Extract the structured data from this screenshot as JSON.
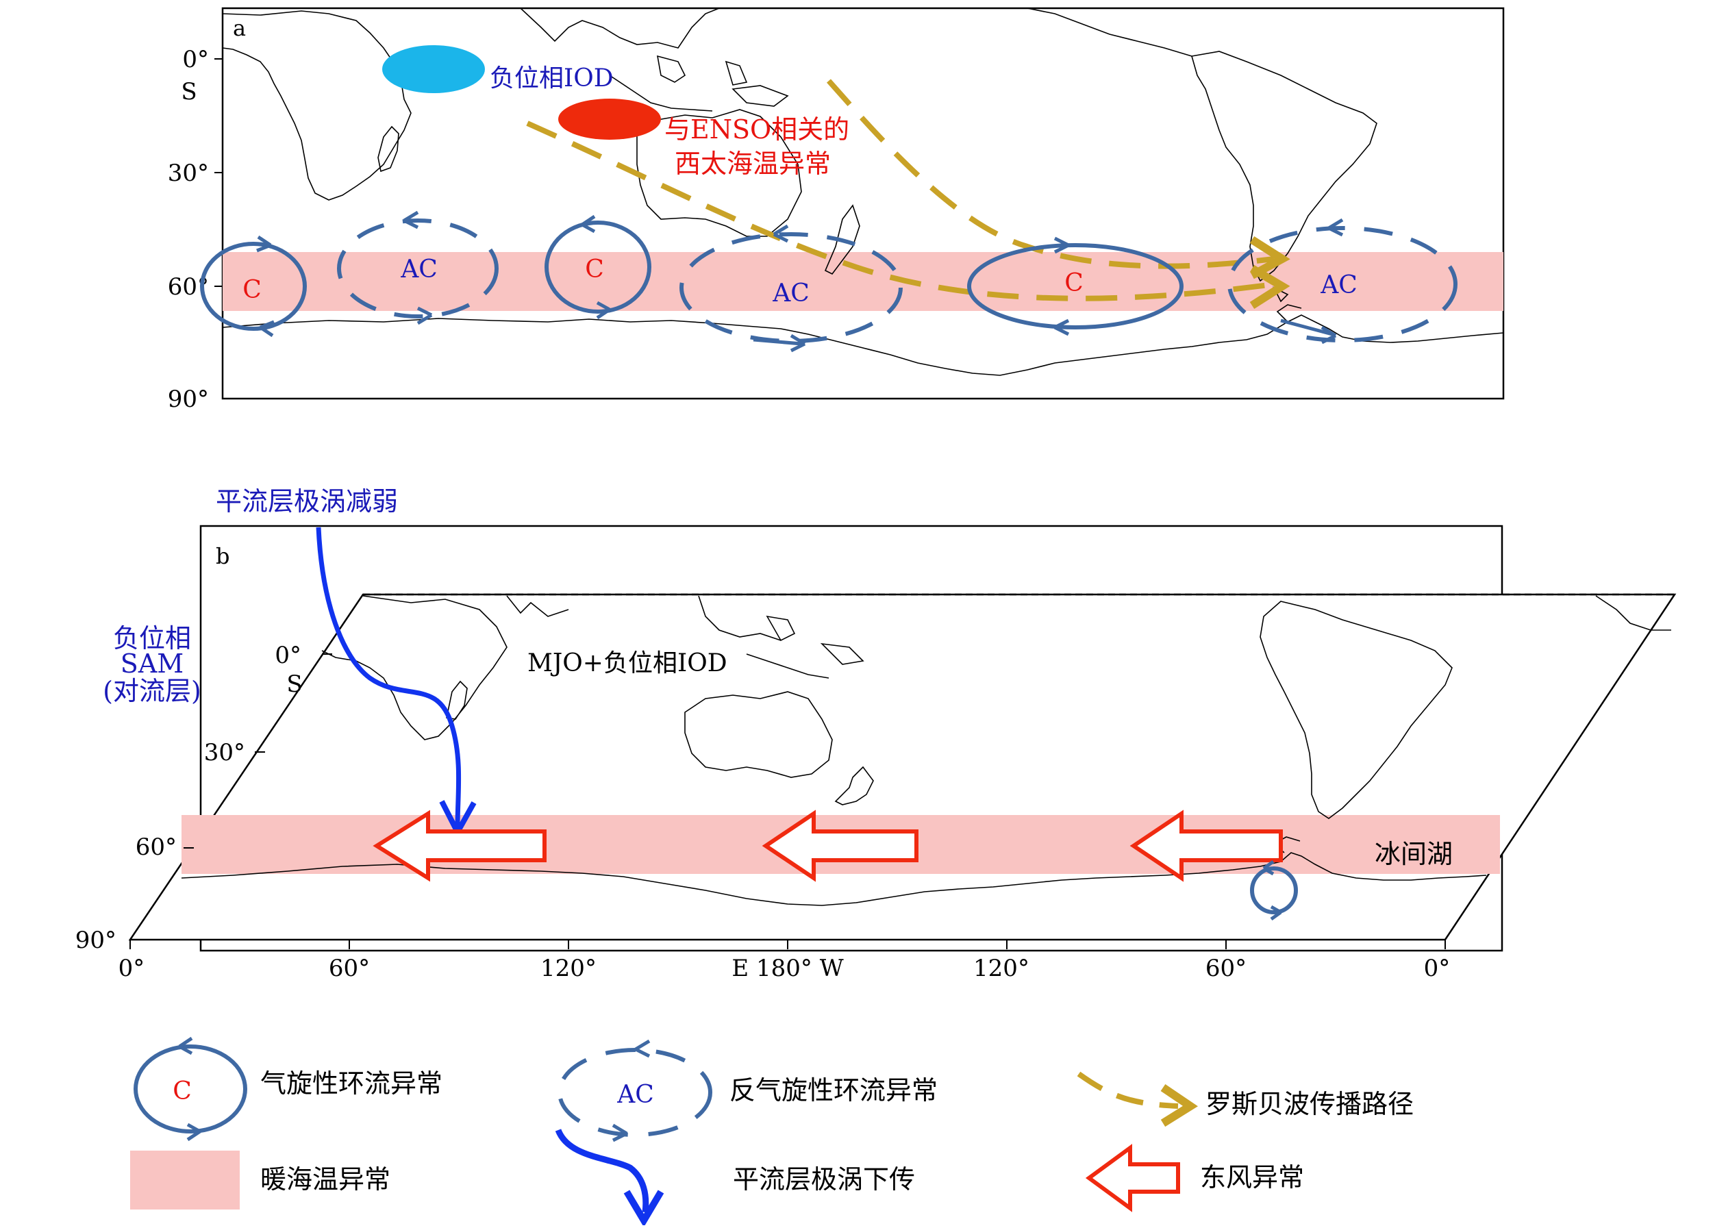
{
  "panel_a": {
    "label": "a",
    "lat_ticks": [
      "0°",
      "30°",
      "60°",
      "90°"
    ],
    "lat_suffix": "S",
    "iod_label": "负位相IOD",
    "enso_label_line1": "与ENSO相关的",
    "enso_label_line2": "西太海温异常",
    "cyclone_letter": "C",
    "anticyclone_letter": "AC"
  },
  "panel_b": {
    "label": "b",
    "lat_ticks": [
      "0°",
      "30°",
      "60°",
      "90°"
    ],
    "lat_suffix": "S",
    "vortex_label": "平流层极涡减弱",
    "sam_line1": "负位相",
    "sam_line2": "SAM",
    "sam_line3": "(对流层)",
    "mjo_label": "MJO+负位相IOD",
    "polynya_label": "冰间湖",
    "lon_ticks": [
      "0°",
      "60°",
      "120°",
      "E 180° W",
      "120°",
      "60°",
      "0°"
    ]
  },
  "legend": {
    "cyclone_letter": "C",
    "cyclone": "气旋性环流异常",
    "anticyclone_letter": "AC",
    "anticyclone": "反气旋性环流异常",
    "rossby": "罗斯贝波传播路径",
    "warm_sst": "暖海温异常",
    "vortex_down": "平流层极涡下传",
    "easterly": "东风异常"
  },
  "colors": {
    "circulation": "#3f69a3",
    "warm_band": "#f9c4c2",
    "rossby": "#c9a227",
    "iod_blue": "#1bb5ea",
    "enso_red": "#ee2a0c",
    "text_blue": "#1a1ab8",
    "text_red": "#e8140f",
    "vortex_blue": "#1133ee",
    "easterly_red": "#f02a10"
  }
}
